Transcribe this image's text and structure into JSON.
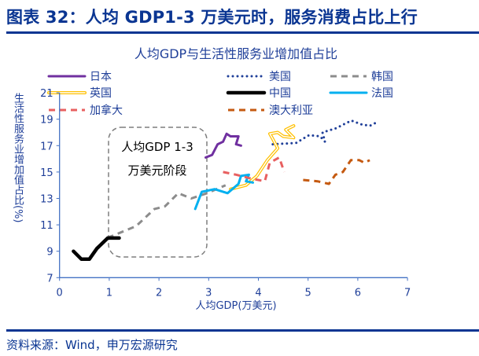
{
  "header": {
    "title": "图表 32：人均 GDP1-3 万美元时，服务消费占比上行"
  },
  "footer": {
    "source": "资料来源：Wind，申万宏源研究"
  },
  "chart_data": {
    "type": "line",
    "title": "人均GDP与生活性服务业增加值占比",
    "xlabel": "人均GDP(万美元)",
    "ylabel": "生活性服务业增加值占比(%)",
    "xlim": [
      0,
      7
    ],
    "ylim": [
      7,
      21
    ],
    "xticks": [
      0,
      1,
      2,
      3,
      4,
      5,
      6,
      7
    ],
    "yticks": [
      7,
      9,
      11,
      13,
      15,
      17,
      19,
      21
    ],
    "grid": false,
    "legend_position": "top",
    "annotation": {
      "line1": "人均GDP 1-3",
      "line2": "万美元阶段",
      "x_range": [
        1,
        3
      ]
    },
    "series": [
      {
        "name": "日本",
        "color": "#7030a0",
        "style": "solid",
        "x": [
          2.94,
          3.07,
          3.18,
          3.29,
          3.36,
          3.44,
          3.6,
          3.55,
          3.65
        ],
        "y": [
          16.1,
          16.3,
          17.1,
          17.3,
          17.9,
          17.7,
          17.7,
          17.1,
          17.0
        ]
      },
      {
        "name": "美国",
        "color": "#1f3f99",
        "style": "dotted",
        "x": [
          4.29,
          4.76,
          5.02,
          5.24,
          5.34,
          5.29,
          5.55,
          5.87,
          6.08,
          6.24,
          6.4
        ],
        "y": [
          17.1,
          17.2,
          17.8,
          17.7,
          17.3,
          18.0,
          18.3,
          18.9,
          18.6,
          18.5,
          18.8
        ]
      },
      {
        "name": "韩国",
        "color": "#8c8c8c",
        "style": "dashed",
        "x": [
          0.81,
          1.02,
          1.54,
          1.91,
          2.12,
          2.39,
          2.65,
          2.97,
          3.34
        ],
        "y": [
          9.4,
          10.1,
          10.9,
          12.2,
          12.4,
          13.4,
          13.0,
          13.4,
          14.0
        ]
      },
      {
        "name": "英国",
        "color": "#ffc000",
        "style": "double",
        "x": [
          3.44,
          3.75,
          3.97,
          4.18,
          4.39,
          4.29,
          4.23,
          4.39,
          4.5,
          4.71,
          4.55,
          4.71
        ],
        "y": [
          13.7,
          14.0,
          14.7,
          15.9,
          16.8,
          17.5,
          17.9,
          18.0,
          17.7,
          17.6,
          18.2,
          18.5
        ]
      },
      {
        "name": "中国",
        "color": "#000000",
        "style": "solid-thick",
        "x": [
          0.28,
          0.44,
          0.6,
          0.75,
          0.97,
          1.2
        ],
        "y": [
          9.0,
          8.4,
          8.4,
          9.2,
          10.0,
          10.0
        ]
      },
      {
        "name": "法国",
        "color": "#00b0f0",
        "style": "solid",
        "x": [
          2.73,
          2.86,
          3.12,
          3.38,
          3.6,
          3.65,
          3.81,
          3.75,
          3.89
        ],
        "y": [
          12.2,
          13.5,
          13.7,
          13.4,
          14.1,
          14.7,
          14.8,
          14.3,
          14.2
        ]
      },
      {
        "name": "加拿大",
        "color": "#e86060",
        "style": "dashed",
        "x": [
          3.29,
          3.55,
          3.86,
          4.13,
          4.23,
          4.42,
          4.52
        ],
        "y": [
          15.0,
          14.8,
          14.5,
          14.3,
          15.7,
          16.1,
          15.0
        ]
      },
      {
        "name": "澳大利亚",
        "color": "#c55a11",
        "style": "dashed",
        "x": [
          4.9,
          5.19,
          5.42,
          5.55,
          5.7,
          5.86,
          6.03,
          6.13,
          6.24
        ],
        "y": [
          14.4,
          14.3,
          14.1,
          14.8,
          15.0,
          15.9,
          15.9,
          15.7,
          15.9
        ]
      }
    ]
  }
}
